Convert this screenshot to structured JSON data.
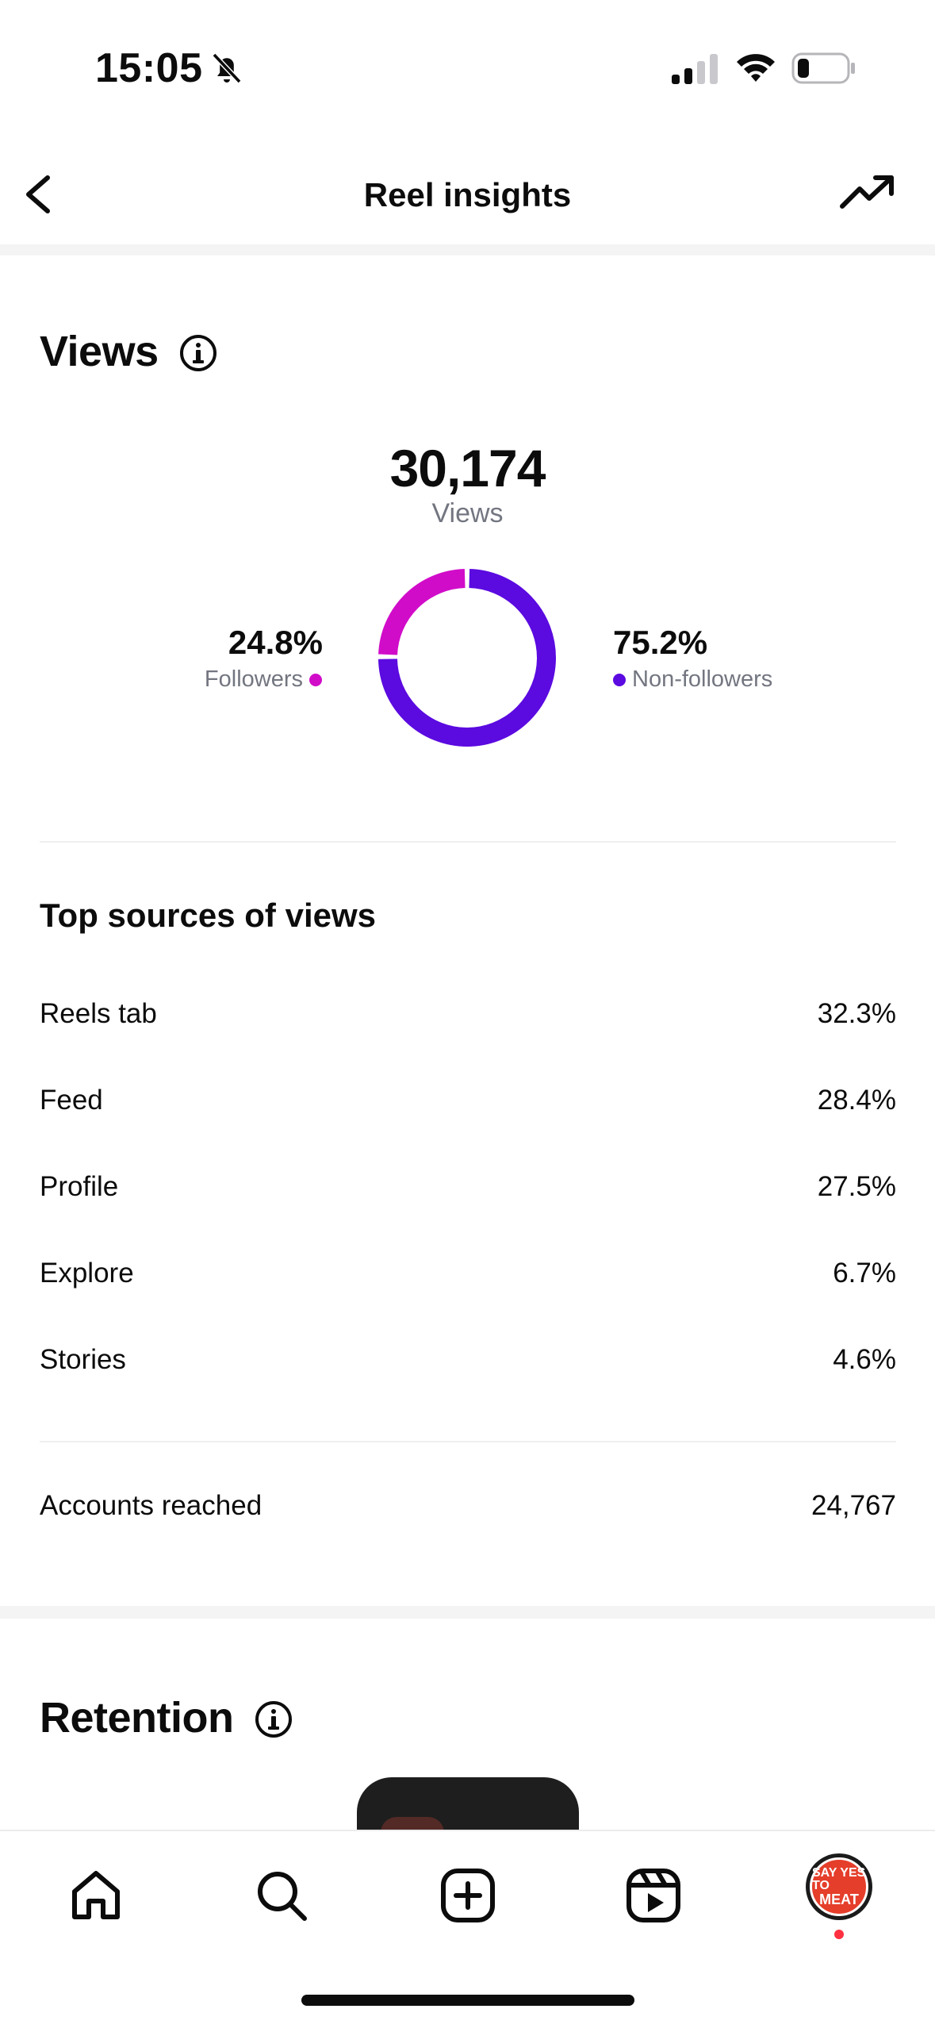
{
  "status_bar": {
    "time": "15:05"
  },
  "header": {
    "title": "Reel insights"
  },
  "views_section": {
    "title": "Views",
    "total_views": "30,174",
    "views_label": "Views",
    "followers_pct": "24.8%",
    "followers_label": "Followers",
    "followers_fraction": 0.248,
    "followers_color": "#d10cc9",
    "non_followers_pct": "75.2%",
    "non_followers_label": "Non-followers",
    "non_followers_fraction": 0.752,
    "non_followers_color": "#5b0ae0"
  },
  "top_sources": {
    "title": "Top sources of views",
    "rows": [
      {
        "label": "Reels tab",
        "value": "32.3%"
      },
      {
        "label": "Feed",
        "value": "28.4%"
      },
      {
        "label": "Profile",
        "value": "27.5%"
      },
      {
        "label": "Explore",
        "value": "6.7%"
      },
      {
        "label": "Stories",
        "value": "4.6%"
      }
    ]
  },
  "accounts_reached": {
    "label": "Accounts reached",
    "value": "24,767"
  },
  "retention_section": {
    "title": "Retention"
  },
  "bottom_nav": {
    "items": [
      "home-icon",
      "search-icon",
      "create-icon",
      "reels-icon",
      "profile-avatar"
    ],
    "avatar_text_top": "SAY YES TO",
    "avatar_text_bottom": "MEAT"
  }
}
